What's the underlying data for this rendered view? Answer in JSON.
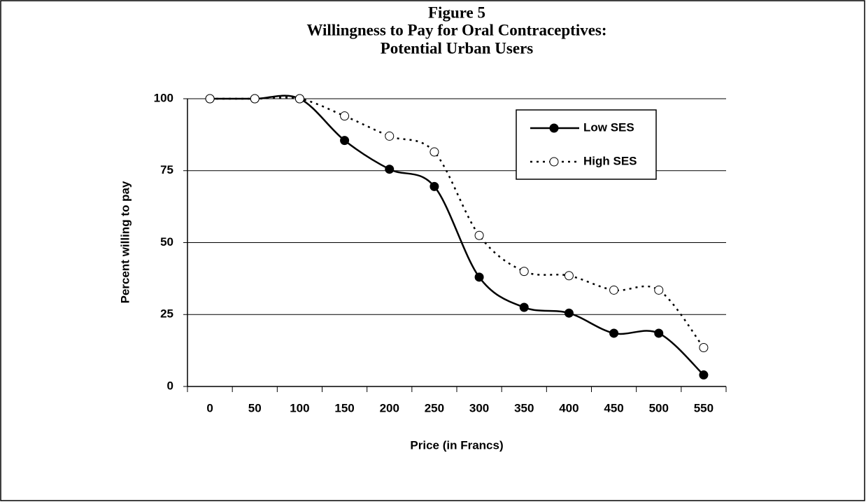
{
  "chart_data": {
    "type": "line",
    "title": [
      "Figure 5",
      "Willingness to Pay for Oral Contraceptives:",
      "Potential Urban Users"
    ],
    "x_label": "Price (in Francs)",
    "y_label": "Percent willing to pay",
    "categories": [
      "0",
      "50",
      "100",
      "150",
      "200",
      "250",
      "300",
      "350",
      "400",
      "450",
      "500",
      "550"
    ],
    "series": [
      {
        "name": "Low SES",
        "color": "#000000",
        "marker": "filled",
        "dash": "solid",
        "values": [
          100,
          100,
          100,
          85.5,
          75.5,
          69.5,
          38,
          27.5,
          25.5,
          18.5,
          18.5,
          4
        ]
      },
      {
        "name": "High SES",
        "color": "#000000",
        "marker": "open",
        "dash": "dotted",
        "values": [
          100,
          100,
          100,
          94,
          87,
          81.5,
          52.5,
          40,
          38.5,
          33.5,
          33.5,
          13.5
        ]
      }
    ],
    "ylim": [
      0,
      100
    ],
    "yticks": [
      0,
      25,
      50,
      75,
      100
    ],
    "grid": true,
    "smooth": true,
    "legend": "upper right"
  }
}
